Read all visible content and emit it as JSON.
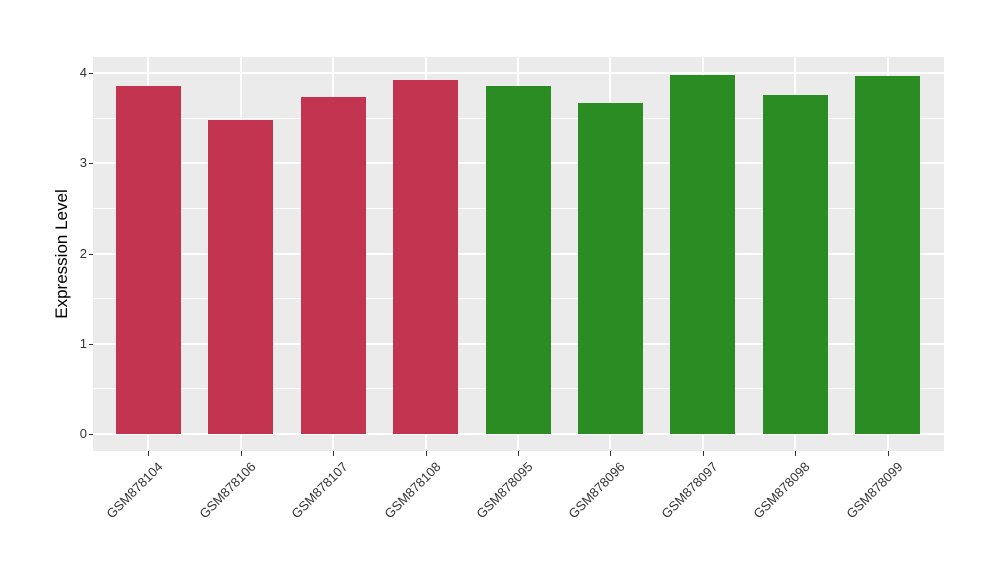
{
  "figure": {
    "background_color": "#FFFFFF",
    "panel_background_color": "#EBEBEB",
    "gridline_color": "#FFFFFF",
    "tick_color": "#333333",
    "axis_text_color": "#333333"
  },
  "chart_data": {
    "type": "bar",
    "title": "",
    "xlabel": "",
    "ylabel": "Expression Level",
    "categories": [
      "GSM878104",
      "GSM878106",
      "GSM878107",
      "GSM878108",
      "GSM878095",
      "GSM878096",
      "GSM878097",
      "GSM878098",
      "GSM878099"
    ],
    "values": [
      3.86,
      3.48,
      3.73,
      3.92,
      3.86,
      3.67,
      3.98,
      3.76,
      3.97
    ],
    "bar_colors": [
      "#C23450",
      "#C23450",
      "#C23450",
      "#C23450",
      "#2B8C24",
      "#2B8C24",
      "#2B8C24",
      "#2B8C24",
      "#2B8C24"
    ],
    "color_groups": {
      "red": "#C23450",
      "green": "#2B8C24"
    },
    "y_ticks": [
      0,
      1,
      2,
      3,
      4
    ],
    "ylim": [
      -0.2,
      4.2
    ],
    "x_tick_rotation_deg": 45,
    "grid": "major-and-minor",
    "legend": "none"
  }
}
